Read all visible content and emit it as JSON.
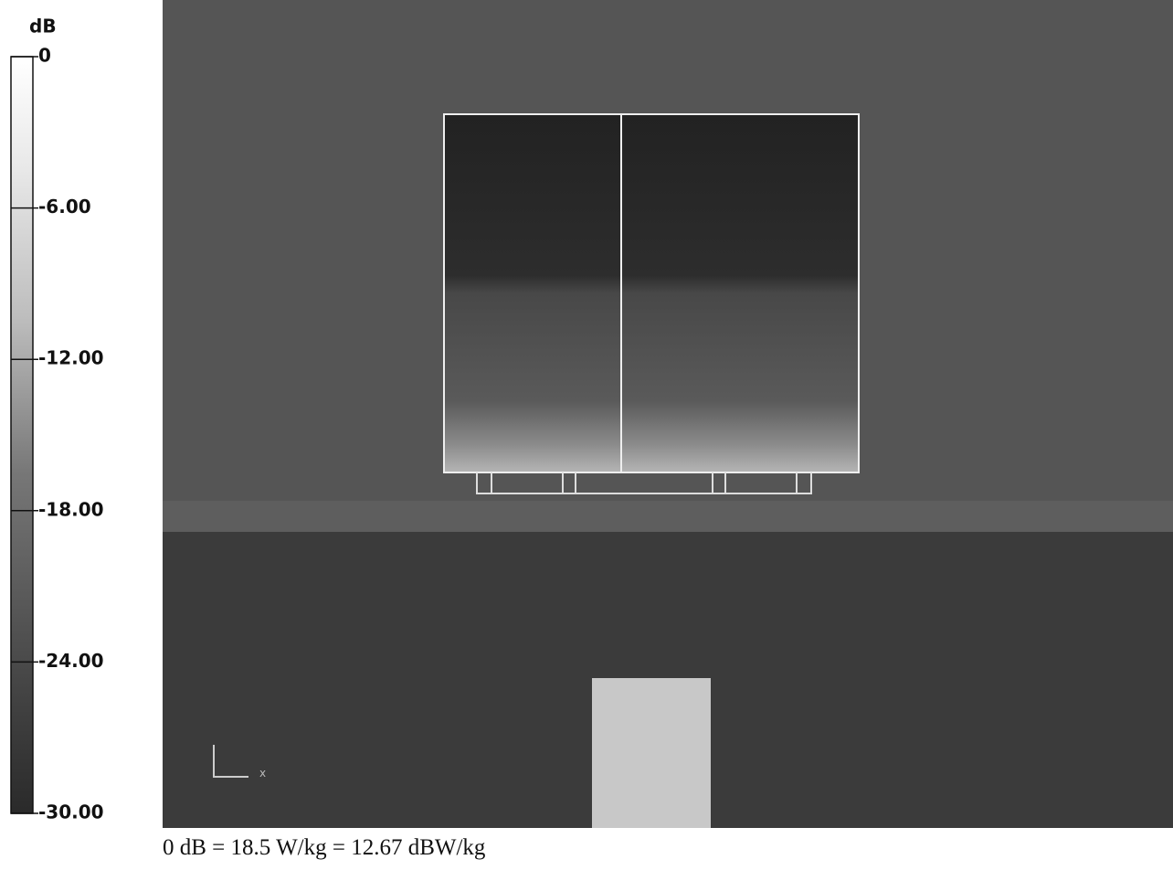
{
  "colorbar": {
    "unit": "dB",
    "range": [
      -30,
      0
    ],
    "ticks": [
      {
        "value": 0,
        "label": "0"
      },
      {
        "value": -6,
        "label": "-6.00"
      },
      {
        "value": -12,
        "label": "-12.00"
      },
      {
        "value": -18,
        "label": "-18.00"
      },
      {
        "value": -24,
        "label": "-24.00"
      },
      {
        "value": -30,
        "label": "-30.00"
      }
    ]
  },
  "axis_label": "x",
  "caption": "0 dB = 18.5 W/kg = 12.67 dBW/kg"
}
